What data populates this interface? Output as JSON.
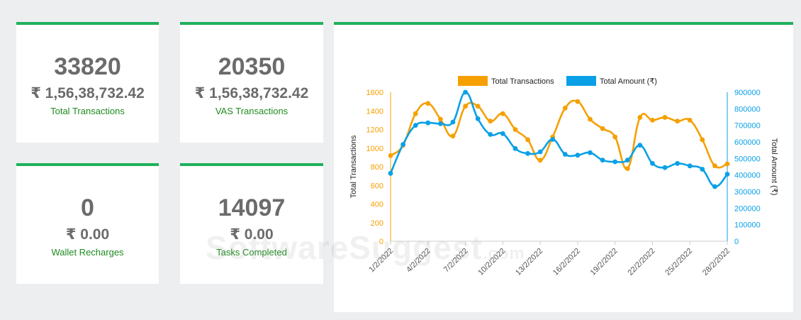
{
  "cards": [
    {
      "count": "33820",
      "amount": "₹ 1,56,38,732.42",
      "label": "Total Transactions"
    },
    {
      "count": "20350",
      "amount": "₹ 1,56,38,732.42",
      "label": "VAS Transactions"
    },
    {
      "count": "0",
      "amount": "₹ 0.00",
      "label": "Wallet Recharges"
    },
    {
      "count": "14097",
      "amount": "₹ 0.00",
      "label": "Tasks Completed"
    }
  ],
  "watermark": {
    "main": "SoftwareSuggest",
    "suffix": ".com"
  },
  "colors": {
    "accent": "#1eb05a",
    "orange": "#f5a000",
    "blue": "#0aa0e6"
  },
  "chart_data": {
    "type": "line",
    "legend": [
      "Total Transactions",
      "Total Amount (₹)"
    ],
    "legend_position": "top",
    "ylabel_left": "Total Transactions",
    "ylabel_right": "Total Amount (₹)",
    "ylim_left": [
      0,
      1600
    ],
    "ylim_right": [
      0,
      900000
    ],
    "yticks_left": [
      "0",
      "200",
      "400",
      "600",
      "800",
      "1000",
      "1200",
      "1400",
      "1600"
    ],
    "yticks_right": [
      "0",
      "100000",
      "200000",
      "300000",
      "400000",
      "500000",
      "600000",
      "700000",
      "800000",
      "900000"
    ],
    "xtick_labels": [
      "1/2/2022",
      "4/2/2022",
      "7/2/2022",
      "10/2/2022",
      "13/2/2022",
      "16/2/2022",
      "19/2/2022",
      "22/2/2022",
      "25/2/2022",
      "28/2/2022"
    ],
    "grid": false,
    "x": [
      "1/2/2022",
      "2/2/2022",
      "3/2/2022",
      "4/2/2022",
      "5/2/2022",
      "6/2/2022",
      "7/2/2022",
      "8/2/2022",
      "9/2/2022",
      "10/2/2022",
      "11/2/2022",
      "12/2/2022",
      "13/2/2022",
      "14/2/2022",
      "15/2/2022",
      "16/2/2022",
      "17/2/2022",
      "18/2/2022",
      "19/2/2022",
      "20/2/2022",
      "21/2/2022",
      "22/2/2022",
      "23/2/2022",
      "24/2/2022",
      "25/2/2022",
      "26/2/2022",
      "27/2/2022",
      "28/2/2022"
    ],
    "series": [
      {
        "name": "Total Transactions",
        "axis": "left",
        "color": "#f5a000",
        "values": [
          920,
          1030,
          1370,
          1480,
          1310,
          1130,
          1450,
          1450,
          1290,
          1370,
          1200,
          1090,
          870,
          1120,
          1430,
          1500,
          1310,
          1210,
          1120,
          780,
          1330,
          1300,
          1330,
          1290,
          1300,
          1090,
          810,
          830
        ]
      },
      {
        "name": "Total Amount (₹)",
        "axis": "right",
        "color": "#0aa0e6",
        "values": [
          410000,
          585000,
          700000,
          715000,
          710000,
          720000,
          900000,
          740000,
          645000,
          650000,
          560000,
          530000,
          540000,
          615000,
          525000,
          520000,
          535000,
          490000,
          480000,
          490000,
          580000,
          470000,
          445000,
          470000,
          455000,
          435000,
          330000,
          405000
        ]
      }
    ]
  }
}
